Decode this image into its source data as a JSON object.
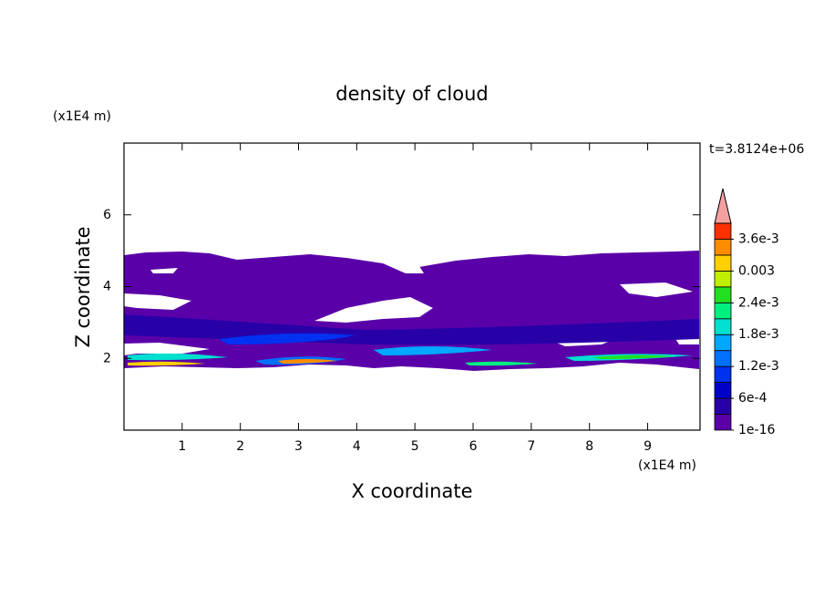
{
  "chart_data": {
    "type": "contour",
    "title": "density of cloud",
    "x_label": "X coordinate",
    "y_label": "Z coordinate",
    "x_unit": "(x1E4 m)",
    "y_unit": "(x1E4 m)",
    "annotation": "t=3.8124e+06",
    "xlim": [
      0,
      9.9
    ],
    "xticks": [
      1,
      2,
      3,
      4,
      5,
      6,
      7,
      8,
      9
    ],
    "ylim": [
      0,
      8
    ],
    "yticks": [
      2,
      4,
      6
    ],
    "colorbar": {
      "lim": [
        1e-16,
        0.0039
      ],
      "ticks": [
        {
          "value": 1e-16,
          "label": "1e-16"
        },
        {
          "value": 0.0006,
          "label": "6e-4"
        },
        {
          "value": 0.0012,
          "label": "1.2e-3"
        },
        {
          "value": 0.0018,
          "label": "1.8e-3"
        },
        {
          "value": 0.0024,
          "label": "2.4e-3"
        },
        0.003,
        {
          "value": 0.0036,
          "label": "3.6e-3"
        }
      ],
      "colors": [
        "#5a00a8",
        "#2800a8",
        "#0000c8",
        "#0030f0",
        "#0070ff",
        "#00a8ff",
        "#00e0d0",
        "#00f080",
        "#20e020",
        "#c0f000",
        "#ffd000",
        "#ff8c00",
        "#ff3000"
      ],
      "extend": "max",
      "extend_color": "#f4a0a0"
    }
  }
}
